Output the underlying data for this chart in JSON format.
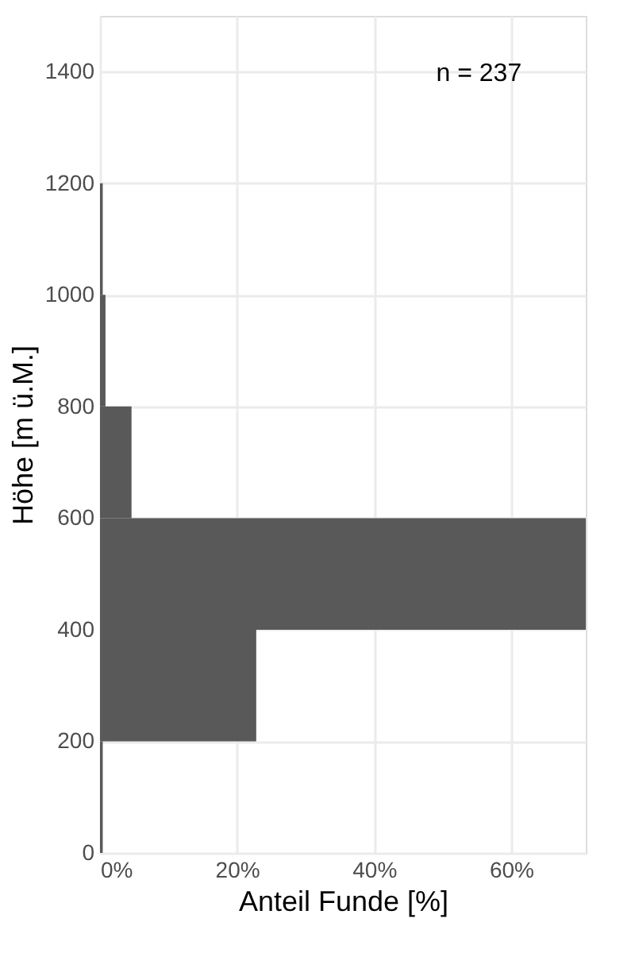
{
  "chart_data": {
    "type": "histogram",
    "orientation": "horizontal",
    "xlabel": "Anteil Funde [%]",
    "ylabel": "Höhe [m ü.M.]",
    "bins": [
      0,
      200,
      400,
      600,
      800,
      1000,
      1200
    ],
    "values": [
      0.4,
      22.8,
      70.9,
      4.6,
      0.8,
      0.4
    ],
    "color": "#595959",
    "xlim": [
      0,
      70.9
    ],
    "xticks": [
      {
        "value": 0,
        "label": "0%"
      },
      {
        "value": 20,
        "label": "20%"
      },
      {
        "value": 40,
        "label": "40%"
      },
      {
        "value": 60,
        "label": "60%"
      }
    ],
    "ylim": [
      0,
      1500
    ],
    "yticks": [
      0,
      200,
      400,
      600,
      800,
      1000,
      1200,
      1400
    ],
    "grid": true,
    "annotations": [
      "n = 237"
    ]
  }
}
